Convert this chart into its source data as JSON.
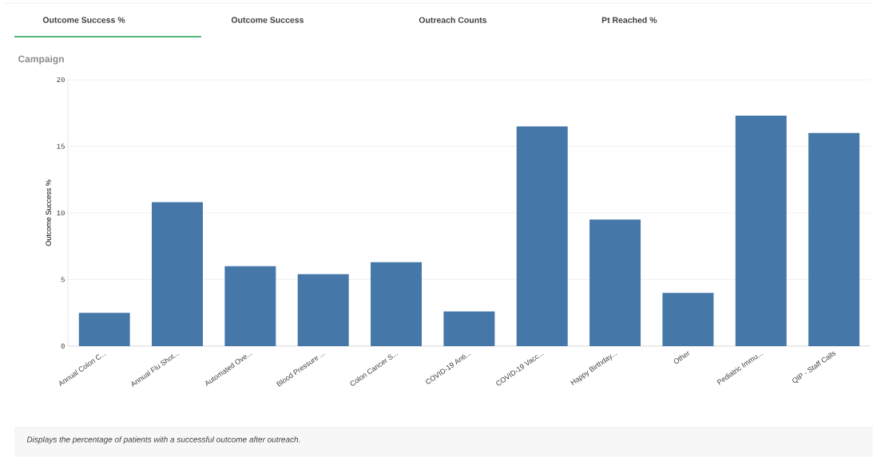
{
  "chart_data": {
    "type": "bar",
    "title": "Campaign",
    "ylabel": "Outcome Success %",
    "categories": [
      "Annual Colon C...",
      "Annual Flu Shot...",
      "Automated Ove...",
      "Blood Pressure ...",
      "Colon Cancer S...",
      "COVID-19 Anti...",
      "COVID-19 Vacc...",
      "Happy Birthday...",
      "Other",
      "Pediatric Immu...",
      "QIP - Staff Calls"
    ],
    "values": [
      2.5,
      10.8,
      6.0,
      5.4,
      6.3,
      2.6,
      16.5,
      9.5,
      4.0,
      17.3,
      16.0
    ],
    "color": "#4577a9",
    "ylim": [
      0,
      20
    ],
    "yticks": [
      0,
      5,
      10,
      15,
      20
    ],
    "grid": "y",
    "annotations": [
      "Outcome Success %",
      "Outcome Success",
      "Outreach Counts",
      "Pt Reached %",
      "Displays the percentage of patients with a successful outcome after outreach."
    ]
  }
}
